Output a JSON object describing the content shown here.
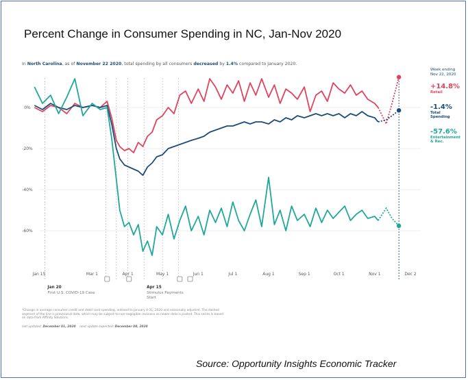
{
  "title": "Percent Change in Consumer Spending in NC, Jan-Nov 2020",
  "summary": {
    "prefix": "In ",
    "region": "North Carolina",
    "mid1": ", as of ",
    "date": "November 22 2020",
    "mid2": ", total spending by all consumers ",
    "direction": "decreased",
    "mid3": " by ",
    "pct": "1.4%",
    "suffix": " compared to January 2020."
  },
  "legend": {
    "heading": "Week ending Nov 22, 2020",
    "items": [
      {
        "value": "+14.8%",
        "label": "Retail",
        "color": "#e0435c"
      },
      {
        "value": "-1.4%",
        "label": "Total Spending",
        "color": "#1a4b7a"
      },
      {
        "value": "-57.6%",
        "label": "Entertainment & Rec.",
        "color": "#1fa89a"
      }
    ]
  },
  "events": [
    {
      "date": "Jan 20",
      "label": "First U.S. COVID-19 Case"
    },
    {
      "date": "Apr 15",
      "label": "Stimulus Payments Start"
    }
  ],
  "notes": "*Change in average consumer credit and debit card spending, indexed to January 4-31, 2020 and seasonally adjusted. The dashed segment of the line is provisional data, which may be subject to non-negligible revisions as newer data is posted. This series is based on data from Affinity Solutions.",
  "updated": {
    "last_label": "last updated:",
    "last": "December 01, 2020",
    "next_label": "next update expected:",
    "next": "December 08, 2020"
  },
  "source": "Source: Opportunity Insights Economic Tracker",
  "chart_data": {
    "type": "line",
    "x_ticks": [
      "Jan 15",
      "Mar 1",
      "Apr 1",
      "May 1",
      "Jun 1",
      "Jul 1",
      "Aug 1",
      "Sep 1",
      "Oct 1",
      "Nov 1",
      "Dec 2"
    ],
    "y_ticks": [
      "0%",
      "-20%",
      "-40%",
      "-60%"
    ],
    "ylim": [
      -75,
      18
    ],
    "grid": true,
    "legend_position": "right",
    "series": [
      {
        "name": "Retail",
        "color": "#e0435c",
        "x": [
          "2020-01-11",
          "2020-01-18",
          "2020-01-25",
          "2020-02-01",
          "2020-02-08",
          "2020-02-15",
          "2020-02-22",
          "2020-03-01",
          "2020-03-08",
          "2020-03-14",
          "2020-03-18",
          "2020-03-22",
          "2020-03-25",
          "2020-03-29",
          "2020-04-02",
          "2020-04-06",
          "2020-04-10",
          "2020-04-14",
          "2020-04-18",
          "2020-04-22",
          "2020-04-26",
          "2020-05-01",
          "2020-05-06",
          "2020-05-11",
          "2020-05-16",
          "2020-05-21",
          "2020-05-26",
          "2020-06-01",
          "2020-06-06",
          "2020-06-11",
          "2020-06-16",
          "2020-06-21",
          "2020-06-26",
          "2020-07-01",
          "2020-07-06",
          "2020-07-11",
          "2020-07-16",
          "2020-07-21",
          "2020-07-26",
          "2020-08-01",
          "2020-08-06",
          "2020-08-11",
          "2020-08-16",
          "2020-08-21",
          "2020-08-26",
          "2020-09-01",
          "2020-09-06",
          "2020-09-11",
          "2020-09-16",
          "2020-09-21",
          "2020-09-26",
          "2020-10-01",
          "2020-10-06",
          "2020-10-11",
          "2020-10-16",
          "2020-10-21",
          "2020-10-26",
          "2020-11-01",
          "2020-11-04"
        ],
        "values": [
          0,
          -2,
          1,
          0,
          -3,
          2,
          0,
          1,
          0,
          3,
          -5,
          -16,
          -19,
          -21,
          -20,
          -22,
          -17,
          -19,
          -14,
          -12,
          -6,
          -4,
          0,
          -3,
          6,
          8,
          2,
          9,
          3,
          14,
          10,
          4,
          11,
          7,
          13,
          3,
          12,
          6,
          14,
          5,
          11,
          2,
          9,
          7,
          4,
          10,
          -2,
          6,
          8,
          3,
          12,
          9,
          7,
          11,
          6,
          8,
          4,
          2,
          0
        ],
        "provisional_x": [
          "2020-11-04",
          "2020-11-11",
          "2020-11-16",
          "2020-11-22"
        ],
        "provisional_values": [
          0,
          -8,
          2,
          14.8
        ]
      },
      {
        "name": "Total Spending",
        "color": "#1a4b7a",
        "x": [
          "2020-01-11",
          "2020-01-18",
          "2020-01-25",
          "2020-02-01",
          "2020-02-08",
          "2020-02-15",
          "2020-02-22",
          "2020-03-01",
          "2020-03-08",
          "2020-03-14",
          "2020-03-18",
          "2020-03-22",
          "2020-03-25",
          "2020-03-29",
          "2020-04-02",
          "2020-04-06",
          "2020-04-10",
          "2020-04-14",
          "2020-04-18",
          "2020-04-22",
          "2020-04-26",
          "2020-05-01",
          "2020-05-06",
          "2020-05-11",
          "2020-05-16",
          "2020-05-21",
          "2020-05-26",
          "2020-06-01",
          "2020-06-06",
          "2020-06-11",
          "2020-06-16",
          "2020-06-21",
          "2020-06-26",
          "2020-07-01",
          "2020-07-06",
          "2020-07-11",
          "2020-07-16",
          "2020-07-21",
          "2020-07-26",
          "2020-08-01",
          "2020-08-06",
          "2020-08-11",
          "2020-08-16",
          "2020-08-21",
          "2020-08-26",
          "2020-09-01",
          "2020-09-06",
          "2020-09-11",
          "2020-09-16",
          "2020-09-21",
          "2020-09-26",
          "2020-10-01",
          "2020-10-06",
          "2020-10-11",
          "2020-10-16",
          "2020-10-21",
          "2020-10-26",
          "2020-11-01",
          "2020-11-04"
        ],
        "values": [
          1,
          -1,
          2,
          0,
          -1,
          1,
          0,
          1,
          0,
          1,
          -8,
          -20,
          -25,
          -28,
          -29,
          -30,
          -31,
          -33,
          -29,
          -27,
          -24,
          -23,
          -20,
          -19,
          -18,
          -17,
          -16,
          -15,
          -14,
          -12,
          -11,
          -10,
          -9,
          -9,
          -8,
          -7,
          -8,
          -7,
          -7,
          -8,
          -6,
          -7,
          -5,
          -6,
          -4,
          -5,
          -4,
          -3,
          -4,
          -3,
          -4,
          -3,
          -5,
          -3,
          -4,
          -2,
          -4,
          -5,
          -7
        ],
        "provisional_x": [
          "2020-11-04",
          "2020-11-11",
          "2020-11-16",
          "2020-11-22"
        ],
        "provisional_values": [
          -7,
          -6,
          -4,
          -1.4
        ]
      },
      {
        "name": "Entertainment & Rec.",
        "color": "#1fa89a",
        "x": [
          "2020-01-11",
          "2020-01-18",
          "2020-01-25",
          "2020-02-01",
          "2020-02-08",
          "2020-02-15",
          "2020-02-22",
          "2020-03-01",
          "2020-03-08",
          "2020-03-14",
          "2020-03-18",
          "2020-03-22",
          "2020-03-25",
          "2020-03-29",
          "2020-04-02",
          "2020-04-06",
          "2020-04-10",
          "2020-04-14",
          "2020-04-18",
          "2020-04-22",
          "2020-04-26",
          "2020-05-01",
          "2020-05-06",
          "2020-05-11",
          "2020-05-16",
          "2020-05-21",
          "2020-05-26",
          "2020-06-01",
          "2020-06-06",
          "2020-06-11",
          "2020-06-16",
          "2020-06-21",
          "2020-06-26",
          "2020-07-01",
          "2020-07-06",
          "2020-07-11",
          "2020-07-16",
          "2020-07-21",
          "2020-07-26",
          "2020-08-01",
          "2020-08-06",
          "2020-08-11",
          "2020-08-16",
          "2020-08-21",
          "2020-08-26",
          "2020-09-01",
          "2020-09-06",
          "2020-09-11",
          "2020-09-16",
          "2020-09-21",
          "2020-09-26",
          "2020-10-01",
          "2020-10-06",
          "2020-10-11",
          "2020-10-16",
          "2020-10-21",
          "2020-10-26",
          "2020-11-01",
          "2020-11-04"
        ],
        "values": [
          10,
          2,
          6,
          -3,
          5,
          14,
          -4,
          2,
          -1,
          0,
          -15,
          -35,
          -50,
          -58,
          -56,
          -62,
          -57,
          -70,
          -65,
          -72,
          -58,
          -62,
          -52,
          -64,
          -55,
          -48,
          -60,
          -53,
          -62,
          -50,
          -56,
          -49,
          -58,
          -46,
          -55,
          -60,
          -52,
          -45,
          -58,
          -34,
          -57,
          -50,
          -60,
          -48,
          -55,
          -52,
          -58,
          -49,
          -56,
          -50,
          -54,
          -51,
          -48,
          -55,
          -52,
          -50,
          -54,
          -53,
          -55
        ],
        "provisional_x": [
          "2020-11-04",
          "2020-11-11",
          "2020-11-16",
          "2020-11-22"
        ],
        "provisional_values": [
          -55,
          -49,
          -54,
          -57.6
        ]
      }
    ]
  }
}
